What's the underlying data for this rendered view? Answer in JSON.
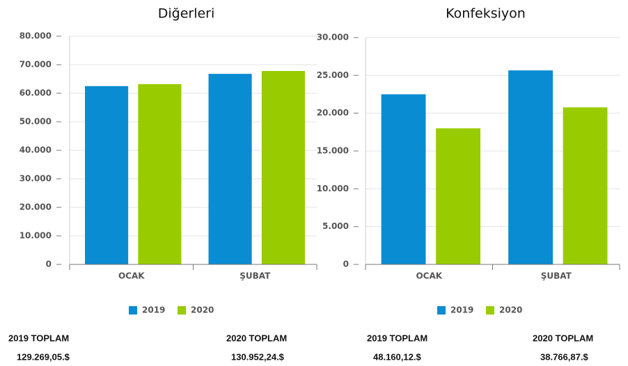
{
  "chart_data": [
    {
      "type": "bar",
      "title": "Diğerleri",
      "categories": [
        "OCAK",
        "ŞUBAT"
      ],
      "series": [
        {
          "name": "2019",
          "color": "#0a8cd2",
          "values": [
            62500,
            66800
          ]
        },
        {
          "name": "2020",
          "color": "#99cc00",
          "values": [
            63200,
            67800
          ]
        }
      ],
      "ylim": [
        0,
        80000
      ],
      "yticks": [
        0,
        {
          "value": 10000,
          "label": "10.000"
        },
        {
          "value": 20000,
          "label": "20.000"
        },
        {
          "value": 30000,
          "label": "30.000"
        },
        {
          "value": 40000,
          "label": "40.000"
        },
        {
          "value": 50000,
          "label": "50.000"
        },
        {
          "value": 60000,
          "label": "60.000"
        },
        {
          "value": 70000,
          "label": "70.000"
        },
        {
          "value": 80000,
          "label": "80.000"
        }
      ],
      "grid": true,
      "legend": "bottom",
      "totals": [
        {
          "label": "2019 TOPLAM",
          "value": "129.269,05.$"
        },
        {
          "label": "2020 TOPLAM",
          "value": "130.952,24.$"
        }
      ]
    },
    {
      "type": "bar",
      "title": "Konfeksiyon",
      "categories": [
        "OCAK",
        "ŞUBAT"
      ],
      "series": [
        {
          "name": "2019",
          "color": "#0a8cd2",
          "values": [
            22500,
            25660
          ]
        },
        {
          "name": "2020",
          "color": "#99cc00",
          "values": [
            18000,
            20770
          ]
        }
      ],
      "ylim": [
        0,
        30000
      ],
      "yticks": [
        0,
        {
          "value": 5000,
          "label": "5.000"
        },
        {
          "value": 10000,
          "label": "10.000"
        },
        {
          "value": 15000,
          "label": "15.000"
        },
        {
          "value": 20000,
          "label": "20.000"
        },
        {
          "value": 25000,
          "label": "25.000"
        },
        {
          "value": 30000,
          "label": "30.000"
        }
      ],
      "grid": true,
      "legend": "bottom",
      "totals": [
        {
          "label": "2019 TOPLAM",
          "value": "48.160,12.$"
        },
        {
          "label": "2020 TOPLAM",
          "value": "38.766,87.$"
        }
      ]
    }
  ]
}
